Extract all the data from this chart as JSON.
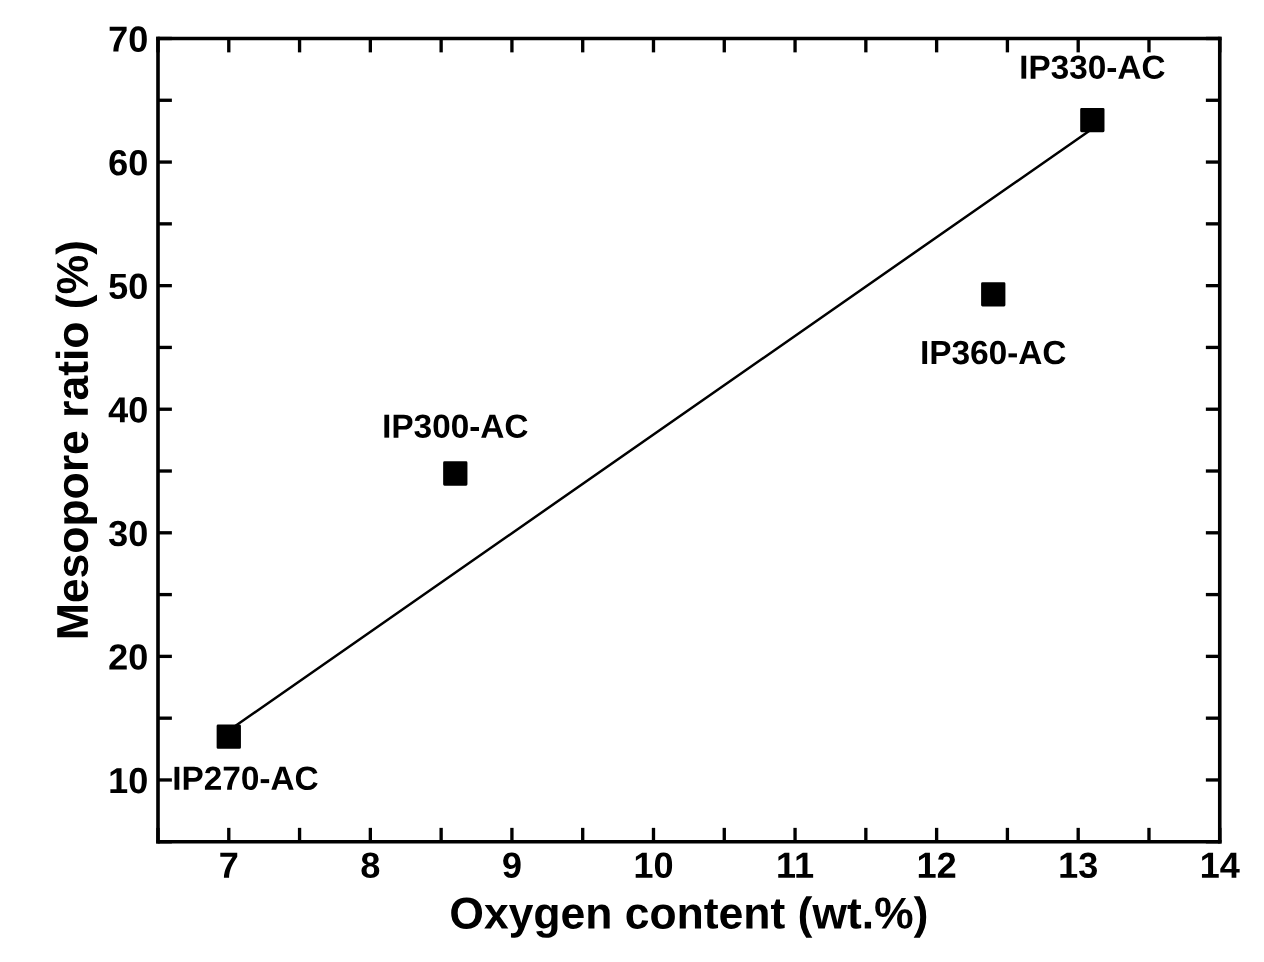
{
  "chart_data": {
    "type": "scatter",
    "xlabel": "Oxygen content (wt.%)",
    "ylabel": "Mesopore ratio (%)",
    "xlim": [
      6.5,
      14
    ],
    "ylim": [
      5,
      70
    ],
    "xticks": [
      {
        "value": 6.5,
        "label": null
      },
      7,
      {
        "value": 7.5,
        "label": null
      },
      8,
      {
        "value": 8.5,
        "label": null
      },
      9,
      {
        "value": 9.5,
        "label": null
      },
      10,
      {
        "value": 10.5,
        "label": null
      },
      11,
      {
        "value": 11.5,
        "label": null
      },
      12,
      {
        "value": 12.5,
        "label": null
      },
      13,
      {
        "value": 13.5,
        "label": null
      },
      14
    ],
    "yticks": [
      {
        "value": 5,
        "label": null
      },
      10,
      {
        "value": 15,
        "label": null
      },
      20,
      {
        "value": 25,
        "label": null
      },
      30,
      {
        "value": 35,
        "label": null
      },
      40,
      {
        "value": 45,
        "label": null
      },
      50,
      {
        "value": 55,
        "label": null
      },
      60,
      {
        "value": 65,
        "label": null
      },
      70
    ],
    "grid": false,
    "legend": false,
    "series": [
      {
        "color": "#000000",
        "marker": "square",
        "x": [
          7.0,
          8.6,
          12.4,
          13.1
        ],
        "values": [
          13.5,
          34.8,
          49.3,
          63.4
        ]
      },
      {
        "type": "line",
        "color": "#000000",
        "marker": "none",
        "line_style": "solid",
        "x": [
          7.0,
          13.1
        ],
        "values": [
          14.0,
          62.7
        ]
      }
    ],
    "annotations": [
      {
        "text": "IP270-AC",
        "x": 7.0,
        "y": 13.5
      },
      {
        "text": "IP300-AC",
        "x": 8.6,
        "y": 34.8
      },
      {
        "text": "IP360-AC",
        "x": 12.4,
        "y": 49.3
      },
      {
        "text": "IP330-AC",
        "x": 13.1,
        "y": 63.4
      }
    ]
  }
}
